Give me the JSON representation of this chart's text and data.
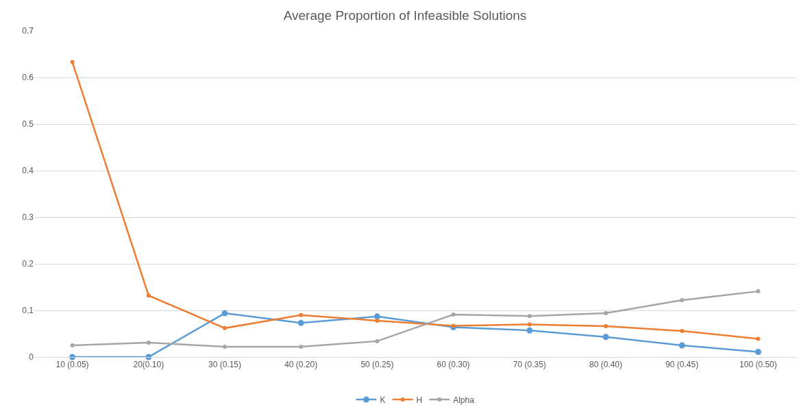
{
  "chart_data": {
    "type": "line",
    "title": "Average Proportion of Infeasible Solutions",
    "categories": [
      "10 (0.05)",
      "20(0.10)",
      "30 (0.15)",
      "40 (0.20)",
      "50 (0.25)",
      "60 (0.30)",
      "70 (0.35)",
      "80 (0.40)",
      "90 (0.45)",
      "100 (0.50)"
    ],
    "series": [
      {
        "name": "K",
        "color": "#5b9bd5",
        "values": [
          0.0,
          0.0,
          0.094,
          0.073,
          0.087,
          0.064,
          0.057,
          0.043,
          0.025,
          0.011
        ]
      },
      {
        "name": "H",
        "color": "#ed7d31",
        "values": [
          0.633,
          0.132,
          0.062,
          0.09,
          0.078,
          0.067,
          0.07,
          0.066,
          0.056,
          0.039
        ]
      },
      {
        "name": "Alpha",
        "color": "#a5a5a5",
        "values": [
          0.025,
          0.031,
          0.022,
          0.022,
          0.034,
          0.091,
          0.088,
          0.094,
          0.122,
          0.141
        ]
      }
    ],
    "ylim": [
      0,
      0.7
    ],
    "yticks": [
      {
        "value": 0,
        "label": "0"
      },
      0.1,
      0.2,
      0.3,
      0.4,
      0.5,
      0.6,
      0.7
    ],
    "grid": "y",
    "legend": "bottom",
    "marker": "circle",
    "line_style": "solid"
  }
}
